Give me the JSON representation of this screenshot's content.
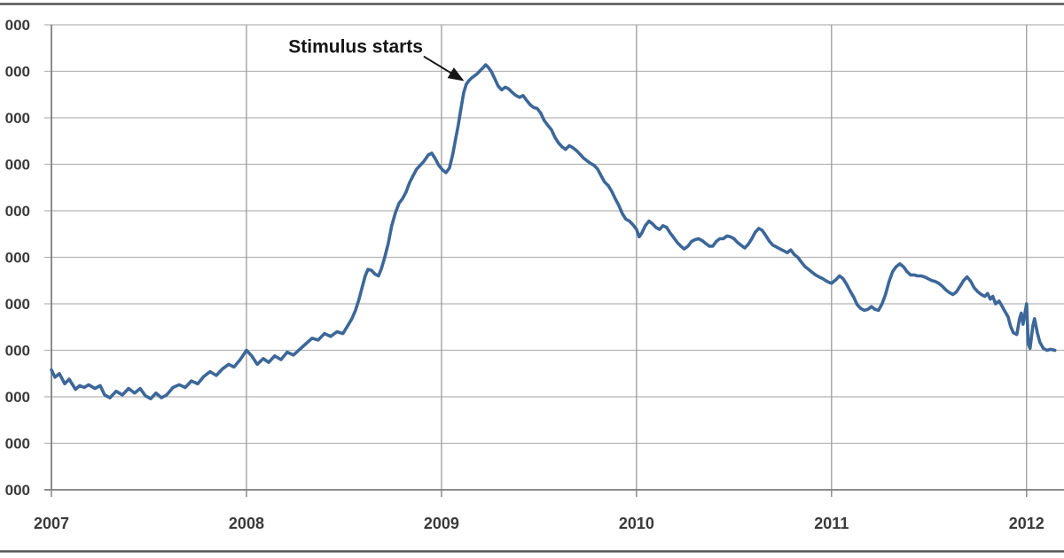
{
  "figure": {
    "background": "#ffffff",
    "top_rule_color": "#555555",
    "bottom_rule_color": "#555555"
  },
  "chart_data": {
    "type": "line",
    "title": "",
    "xlabel": "",
    "ylabel": "",
    "grid": true,
    "legend": false,
    "xlim": [
      2007,
      2012.192
    ],
    "ylim": [
      200,
      700
    ],
    "values_unit": "thousands (y-axis labels cropped; only trailing 000 visible)",
    "x_axis": {
      "tick_values": [
        2007,
        2008,
        2009,
        2010,
        2011,
        2012
      ],
      "tick_labels": [
        "2007",
        "2008",
        "2009",
        "2010",
        "2011",
        "2012"
      ]
    },
    "y_axis": {
      "tick_values": [
        700,
        650,
        600,
        550,
        500,
        450,
        400,
        350,
        300,
        250,
        200
      ],
      "tick_labels": [
        "000",
        "000",
        "000",
        "000",
        "000",
        "000",
        "000",
        "000",
        "000",
        "000",
        "000"
      ],
      "labels_cropped_at_left_edge": true
    },
    "annotation": {
      "text": "Stimulus starts",
      "text_position": {
        "x": 2008.56,
        "y": 670
      },
      "arrow_start": {
        "x": 2008.909,
        "y": 666
      },
      "arrow_end": {
        "x": 2009.105,
        "y": 641
      }
    },
    "series": [
      {
        "name": "",
        "color": "#3c6798",
        "points": [
          [
            2007.0,
            329
          ],
          [
            2007.018,
            321
          ],
          [
            2007.041,
            325
          ],
          [
            2007.068,
            314
          ],
          [
            2007.091,
            319
          ],
          [
            2007.123,
            308
          ],
          [
            2007.145,
            312
          ],
          [
            2007.168,
            310
          ],
          [
            2007.191,
            313
          ],
          [
            2007.223,
            309
          ],
          [
            2007.25,
            312
          ],
          [
            2007.273,
            302
          ],
          [
            2007.3,
            299
          ],
          [
            2007.332,
            306
          ],
          [
            2007.364,
            302
          ],
          [
            2007.395,
            309
          ],
          [
            2007.427,
            304
          ],
          [
            2007.455,
            309
          ],
          [
            2007.482,
            301
          ],
          [
            2007.509,
            298
          ],
          [
            2007.536,
            304
          ],
          [
            2007.564,
            299
          ],
          [
            2007.591,
            302
          ],
          [
            2007.623,
            310
          ],
          [
            2007.655,
            313
          ],
          [
            2007.686,
            310
          ],
          [
            2007.718,
            317
          ],
          [
            2007.75,
            314
          ],
          [
            2007.782,
            322
          ],
          [
            2007.814,
            327
          ],
          [
            2007.845,
            323
          ],
          [
            2007.877,
            330
          ],
          [
            2007.909,
            335
          ],
          [
            2007.936,
            332
          ],
          [
            2007.968,
            340
          ],
          [
            2008.0,
            350
          ],
          [
            2008.027,
            344
          ],
          [
            2008.055,
            335
          ],
          [
            2008.086,
            341
          ],
          [
            2008.114,
            337
          ],
          [
            2008.145,
            344
          ],
          [
            2008.177,
            340
          ],
          [
            2008.209,
            348
          ],
          [
            2008.241,
            345
          ],
          [
            2008.273,
            351
          ],
          [
            2008.305,
            357
          ],
          [
            2008.336,
            363
          ],
          [
            2008.368,
            361
          ],
          [
            2008.4,
            368
          ],
          [
            2008.432,
            365
          ],
          [
            2008.464,
            370
          ],
          [
            2008.495,
            368
          ],
          [
            2008.518,
            376
          ],
          [
            2008.541,
            384
          ],
          [
            2008.559,
            393
          ],
          [
            2008.577,
            405
          ],
          [
            2008.595,
            419
          ],
          [
            2008.609,
            430
          ],
          [
            2008.623,
            437
          ],
          [
            2008.641,
            436
          ],
          [
            2008.659,
            432
          ],
          [
            2008.677,
            430
          ],
          [
            2008.691,
            437
          ],
          [
            2008.709,
            450
          ],
          [
            2008.727,
            465
          ],
          [
            2008.745,
            484
          ],
          [
            2008.764,
            498
          ],
          [
            2008.782,
            508
          ],
          [
            2008.8,
            513
          ],
          [
            2008.818,
            520
          ],
          [
            2008.836,
            530
          ],
          [
            2008.855,
            538
          ],
          [
            2008.873,
            545
          ],
          [
            2008.891,
            549
          ],
          [
            2008.909,
            553
          ],
          [
            2008.932,
            560
          ],
          [
            2008.95,
            562
          ],
          [
            2008.968,
            556
          ],
          [
            2008.986,
            549
          ],
          [
            2009.005,
            544
          ],
          [
            2009.023,
            541
          ],
          [
            2009.041,
            546
          ],
          [
            2009.059,
            562
          ],
          [
            2009.073,
            578
          ],
          [
            2009.086,
            592
          ],
          [
            2009.1,
            610
          ],
          [
            2009.114,
            627
          ],
          [
            2009.127,
            636
          ],
          [
            2009.141,
            640
          ],
          [
            2009.155,
            643
          ],
          [
            2009.168,
            645
          ],
          [
            2009.182,
            647
          ],
          [
            2009.195,
            650
          ],
          [
            2009.209,
            653
          ],
          [
            2009.227,
            657
          ],
          [
            2009.241,
            654
          ],
          [
            2009.255,
            650
          ],
          [
            2009.273,
            642
          ],
          [
            2009.291,
            634
          ],
          [
            2009.309,
            630
          ],
          [
            2009.327,
            633
          ],
          [
            2009.345,
            631
          ],
          [
            2009.364,
            627
          ],
          [
            2009.382,
            624
          ],
          [
            2009.4,
            622
          ],
          [
            2009.418,
            624
          ],
          [
            2009.436,
            619
          ],
          [
            2009.455,
            614
          ],
          [
            2009.473,
            611
          ],
          [
            2009.491,
            610
          ],
          [
            2009.509,
            605
          ],
          [
            2009.527,
            597
          ],
          [
            2009.545,
            592
          ],
          [
            2009.564,
            587
          ],
          [
            2009.582,
            579
          ],
          [
            2009.6,
            573
          ],
          [
            2009.618,
            569
          ],
          [
            2009.636,
            566
          ],
          [
            2009.655,
            570
          ],
          [
            2009.673,
            568
          ],
          [
            2009.691,
            565
          ],
          [
            2009.709,
            561
          ],
          [
            2009.727,
            557
          ],
          [
            2009.745,
            554
          ],
          [
            2009.764,
            551
          ],
          [
            2009.782,
            549
          ],
          [
            2009.8,
            545
          ],
          [
            2009.818,
            538
          ],
          [
            2009.836,
            531
          ],
          [
            2009.855,
            527
          ],
          [
            2009.873,
            521
          ],
          [
            2009.891,
            513
          ],
          [
            2009.909,
            506
          ],
          [
            2009.927,
            497
          ],
          [
            2009.945,
            491
          ],
          [
            2009.964,
            489
          ],
          [
            2009.982,
            485
          ],
          [
            2010.0,
            480
          ],
          [
            2010.014,
            472
          ],
          [
            2010.027,
            476
          ],
          [
            2010.045,
            484
          ],
          [
            2010.064,
            489
          ],
          [
            2010.082,
            486
          ],
          [
            2010.1,
            482
          ],
          [
            2010.118,
            480
          ],
          [
            2010.136,
            484
          ],
          [
            2010.155,
            482
          ],
          [
            2010.173,
            476
          ],
          [
            2010.191,
            471
          ],
          [
            2010.209,
            466
          ],
          [
            2010.227,
            462
          ],
          [
            2010.245,
            459
          ],
          [
            2010.264,
            462
          ],
          [
            2010.282,
            467
          ],
          [
            2010.3,
            469
          ],
          [
            2010.318,
            470
          ],
          [
            2010.336,
            468
          ],
          [
            2010.355,
            465
          ],
          [
            2010.373,
            462
          ],
          [
            2010.391,
            462
          ],
          [
            2010.409,
            467
          ],
          [
            2010.427,
            470
          ],
          [
            2010.445,
            470
          ],
          [
            2010.464,
            473
          ],
          [
            2010.482,
            472
          ],
          [
            2010.5,
            470
          ],
          [
            2010.518,
            466
          ],
          [
            2010.536,
            463
          ],
          [
            2010.555,
            460
          ],
          [
            2010.573,
            464
          ],
          [
            2010.591,
            470
          ],
          [
            2010.609,
            477
          ],
          [
            2010.627,
            481
          ],
          [
            2010.645,
            479
          ],
          [
            2010.664,
            473
          ],
          [
            2010.682,
            467
          ],
          [
            2010.7,
            463
          ],
          [
            2010.718,
            461
          ],
          [
            2010.736,
            459
          ],
          [
            2010.755,
            457
          ],
          [
            2010.773,
            455
          ],
          [
            2010.791,
            458
          ],
          [
            2010.809,
            453
          ],
          [
            2010.827,
            450
          ],
          [
            2010.845,
            445
          ],
          [
            2010.864,
            440
          ],
          [
            2010.882,
            437
          ],
          [
            2010.9,
            434
          ],
          [
            2010.918,
            431
          ],
          [
            2010.936,
            429
          ],
          [
            2010.955,
            427
          ],
          [
            2010.977,
            424
          ],
          [
            2011.0,
            422
          ],
          [
            2011.023,
            426
          ],
          [
            2011.041,
            430
          ],
          [
            2011.059,
            427
          ],
          [
            2011.077,
            421
          ],
          [
            2011.095,
            414
          ],
          [
            2011.114,
            407
          ],
          [
            2011.132,
            399
          ],
          [
            2011.15,
            395
          ],
          [
            2011.168,
            393
          ],
          [
            2011.186,
            394
          ],
          [
            2011.205,
            397
          ],
          [
            2011.223,
            394
          ],
          [
            2011.241,
            393
          ],
          [
            2011.259,
            400
          ],
          [
            2011.277,
            410
          ],
          [
            2011.295,
            424
          ],
          [
            2011.314,
            435
          ],
          [
            2011.332,
            440
          ],
          [
            2011.35,
            443
          ],
          [
            2011.368,
            440
          ],
          [
            2011.386,
            435
          ],
          [
            2011.405,
            431
          ],
          [
            2011.423,
            431
          ],
          [
            2011.441,
            430
          ],
          [
            2011.459,
            430
          ],
          [
            2011.477,
            429
          ],
          [
            2011.495,
            427
          ],
          [
            2011.514,
            425
          ],
          [
            2011.532,
            424
          ],
          [
            2011.55,
            422
          ],
          [
            2011.568,
            419
          ],
          [
            2011.586,
            415
          ],
          [
            2011.605,
            412
          ],
          [
            2011.623,
            410
          ],
          [
            2011.641,
            413
          ],
          [
            2011.659,
            419
          ],
          [
            2011.677,
            425
          ],
          [
            2011.695,
            429
          ],
          [
            2011.714,
            424
          ],
          [
            2011.732,
            417
          ],
          [
            2011.75,
            413
          ],
          [
            2011.768,
            410
          ],
          [
            2011.786,
            408
          ],
          [
            2011.8,
            411
          ],
          [
            2011.814,
            405
          ],
          [
            2011.827,
            408
          ],
          [
            2011.841,
            400
          ],
          [
            2011.859,
            403
          ],
          [
            2011.873,
            398
          ],
          [
            2011.886,
            393
          ],
          [
            2011.905,
            386
          ],
          [
            2011.918,
            376
          ],
          [
            2011.932,
            369
          ],
          [
            2011.95,
            367
          ],
          [
            2011.964,
            384
          ],
          [
            2011.973,
            390
          ],
          [
            2011.982,
            378
          ],
          [
            2012.0,
            400
          ],
          [
            2012.009,
            357
          ],
          [
            2012.018,
            352
          ],
          [
            2012.032,
            376
          ],
          [
            2012.041,
            384
          ],
          [
            2012.055,
            369
          ],
          [
            2012.068,
            359
          ],
          [
            2012.086,
            352
          ],
          [
            2012.105,
            350
          ],
          [
            2012.123,
            351
          ],
          [
            2012.145,
            350
          ]
        ]
      }
    ]
  }
}
